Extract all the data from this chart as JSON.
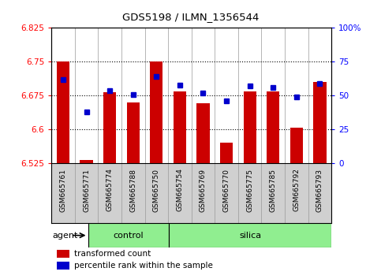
{
  "title": "GDS5198 / ILMN_1356544",
  "samples": [
    "GSM665761",
    "GSM665771",
    "GSM665774",
    "GSM665788",
    "GSM665750",
    "GSM665754",
    "GSM665769",
    "GSM665770",
    "GSM665775",
    "GSM665785",
    "GSM665792",
    "GSM665793"
  ],
  "red_values": [
    6.75,
    6.533,
    6.683,
    6.66,
    6.75,
    6.685,
    6.658,
    6.572,
    6.684,
    6.684,
    6.604,
    6.705
  ],
  "blue_pct": [
    62,
    38,
    54,
    51,
    64,
    58,
    52,
    46,
    57,
    56,
    49,
    59
  ],
  "control_count": 4,
  "silica_count": 8,
  "y_min": 6.525,
  "y_max": 6.825,
  "y_ticks": [
    6.525,
    6.6,
    6.675,
    6.75,
    6.825
  ],
  "y_right_ticks": [
    0,
    25,
    50,
    75,
    100
  ],
  "y_right_labels": [
    "0",
    "25",
    "50",
    "75",
    "100%"
  ],
  "hlines": [
    6.6,
    6.675,
    6.75
  ],
  "bar_color": "#CC0000",
  "marker_color": "#0000CC",
  "green_color": "#90EE90",
  "gray_color": "#D0D0D0",
  "legend_red": "transformed count",
  "legend_blue": "percentile rank within the sample",
  "agent_label": "agent",
  "control_label": "control",
  "silica_label": "silica"
}
